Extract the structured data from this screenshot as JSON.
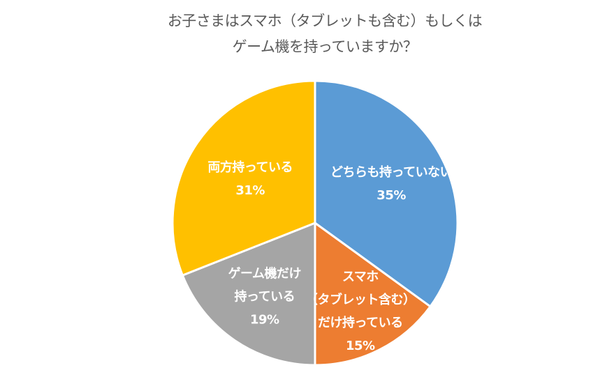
{
  "chart_data": {
    "type": "pie",
    "title": "お子さまはスマホ（タブレットも含む）もしくはゲーム機を持っていますか？",
    "title_lines": [
      "お子さまはスマホ（タブレットも含む）もしくは",
      "ゲーム機を持っていますか？"
    ],
    "title_color": "#595959",
    "background_color": "#FFFFFF",
    "slice_border_color": "#FFFFFF",
    "label_text_color": "#FFFFFF",
    "start_angle": "top",
    "direction": "clockwise",
    "legend": "none",
    "units": "percent",
    "slices": [
      {
        "id": "neither",
        "label": "どちらも持っていない",
        "value": 35,
        "pct_text": "35%",
        "color": "#5B9BD5",
        "label_lines": [
          "どちらも持っていない",
          "35%"
        ],
        "label_radius_factor": 0.6
      },
      {
        "id": "smartphone-only",
        "label": "スマホ（タブレット含む）だけ持っている",
        "value": 15,
        "pct_text": "15%",
        "color": "#ED7D31",
        "label_lines": [
          "スマホ",
          "（タブレット含む）",
          "だけ持っている",
          "15%"
        ],
        "label_radius_factor": 0.7
      },
      {
        "id": "game-console-only",
        "label": "ゲーム機だけ持っている",
        "value": 19,
        "pct_text": "19%",
        "color": "#A5A5A5",
        "label_lines": [
          "ゲーム機だけ",
          "持っている",
          "19%"
        ],
        "label_radius_factor": 0.63
      },
      {
        "id": "both",
        "label": "両方持っている",
        "value": 31,
        "pct_text": "31%",
        "color": "#FFC000",
        "label_lines": [
          "両方持っている",
          "31%"
        ],
        "label_radius_factor": 0.55
      }
    ]
  }
}
